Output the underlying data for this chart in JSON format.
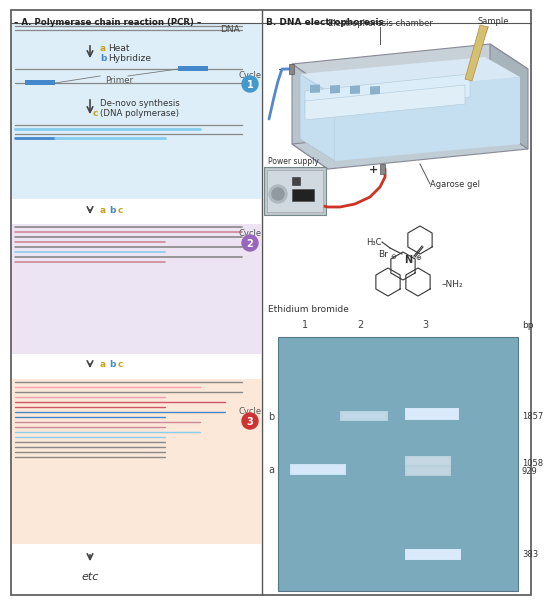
{
  "title_left": "– A. Polymerase chain reaction (PCR) –",
  "title_right": "B. DNA electrophoresis",
  "bg_color": "#ffffff",
  "cycle1_bg": "#ddeef8",
  "cycle2_bg": "#ece4f2",
  "cycle3_bg": "#fce8d8",
  "label_a_color": "#c8a020",
  "label_b_color": "#4488cc",
  "label_c_color": "#c8a020",
  "cycle1_circle": "#4499cc",
  "cycle2_circle": "#9966bb",
  "cycle3_circle": "#cc3333",
  "gray_strand": "#888888",
  "blue_strand": "#4488cc",
  "lightblue_strand": "#88ccee",
  "pink_strand": "#cc8899",
  "red_strand": "#cc5566",
  "salmon_strand": "#e8a0a0",
  "gel_bg": "#7aaabb",
  "band_white": "#ddeeff",
  "band_dim": "#aabbcc",
  "bp_labels": [
    "1857",
    "1058",
    "929",
    "383"
  ],
  "lane_labels": [
    "1",
    "2",
    "3"
  ]
}
